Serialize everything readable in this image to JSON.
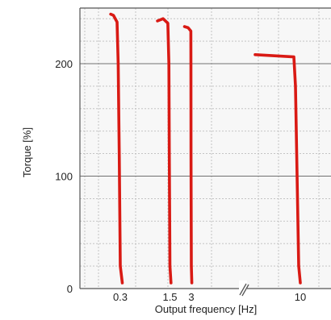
{
  "chart_data": {
    "type": "line",
    "title": "",
    "xlabel": "Output frequency [Hz]",
    "ylabel": "Torque [%]",
    "ylim": [
      0,
      245
    ],
    "y_ticks": [
      "0",
      "100",
      "200"
    ],
    "x_ticks": [
      "0.3",
      "1.5",
      "3",
      "10"
    ],
    "x_axis_break": true,
    "grid": {
      "major": true,
      "minor": "dotted"
    },
    "colors": {
      "series": "#d91a14",
      "plot_border": "#555555",
      "major_grid": "#707070",
      "minor_grid": "#bdbdbd",
      "background": "#f7f7f7"
    },
    "series": [
      {
        "frequency": 0.3,
        "points": [
          [
            0.22,
            244
          ],
          [
            0.24,
            243
          ],
          [
            0.27,
            237
          ],
          [
            0.28,
            200
          ],
          [
            0.29,
            120
          ],
          [
            0.3,
            20
          ],
          [
            0.32,
            5
          ]
        ]
      },
      {
        "frequency": 1.5,
        "points": [
          [
            1.0,
            238
          ],
          [
            1.2,
            240
          ],
          [
            1.4,
            236
          ],
          [
            1.45,
            200
          ],
          [
            1.47,
            120
          ],
          [
            1.5,
            20
          ],
          [
            1.55,
            5
          ]
        ]
      },
      {
        "frequency": 3,
        "points": [
          [
            2.4,
            233
          ],
          [
            2.7,
            232
          ],
          [
            2.95,
            229
          ],
          [
            2.96,
            200
          ],
          [
            2.97,
            120
          ],
          [
            3.0,
            20
          ],
          [
            3.05,
            5
          ]
        ]
      },
      {
        "frequency": 10,
        "points": [
          [
            8.6,
            208
          ],
          [
            9.2,
            207
          ],
          [
            9.8,
            206
          ],
          [
            9.85,
            180
          ],
          [
            9.9,
            100
          ],
          [
            9.95,
            20
          ],
          [
            10.0,
            5
          ]
        ]
      }
    ]
  }
}
